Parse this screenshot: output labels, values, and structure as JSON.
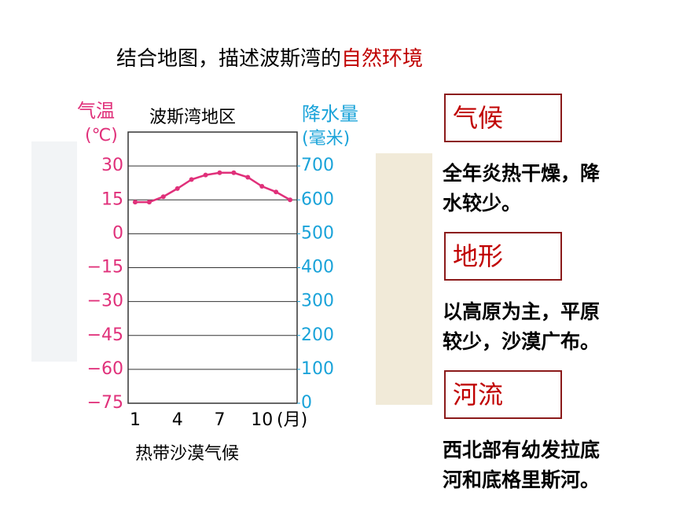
{
  "title": {
    "part1": "结合地图，描述波斯湾的",
    "part2": "自然环境"
  },
  "chart_data": {
    "type": "line",
    "subtitle": "波斯湾地区",
    "caption": "热带沙漠气候",
    "y_label": "气温",
    "y_unit": "(℃)",
    "y2_label": "降水量",
    "y2_unit": "(毫米)",
    "x_unit": "(月)",
    "categories": [
      "1",
      null,
      null,
      "4",
      null,
      null,
      "7",
      null,
      null,
      "10",
      null,
      null
    ],
    "series": [
      {
        "name": "气温",
        "color": "#e0307a",
        "values": [
          14,
          14,
          16.4,
          20,
          24,
          26,
          27,
          27,
          25,
          21,
          18.5,
          15
        ]
      }
    ],
    "ylim": [
      -75,
      45
    ],
    "yticks": [
      30,
      15,
      0,
      {
        "value": -15,
        "label": "−15"
      },
      {
        "value": -30,
        "label": "−30"
      },
      {
        "value": -45,
        "label": "−45"
      },
      {
        "value": -60,
        "label": "−60"
      },
      {
        "value": -75,
        "label": "−75"
      }
    ],
    "y2lim": [
      0,
      800
    ],
    "y2ticks": [
      700,
      600,
      500,
      400,
      300,
      200,
      100,
      0
    ],
    "grid": true
  },
  "panels": [
    {
      "heading": "气候",
      "text": [
        "全年炎热干燥，降",
        "水较少。"
      ]
    },
    {
      "heading": "地形",
      "text": [
        "以高原为主，平原",
        "较少，沙漠广布。"
      ]
    },
    {
      "heading": "河流",
      "text": [
        "西北部有幼发拉底",
        "河和底格里斯河。"
      ]
    }
  ]
}
